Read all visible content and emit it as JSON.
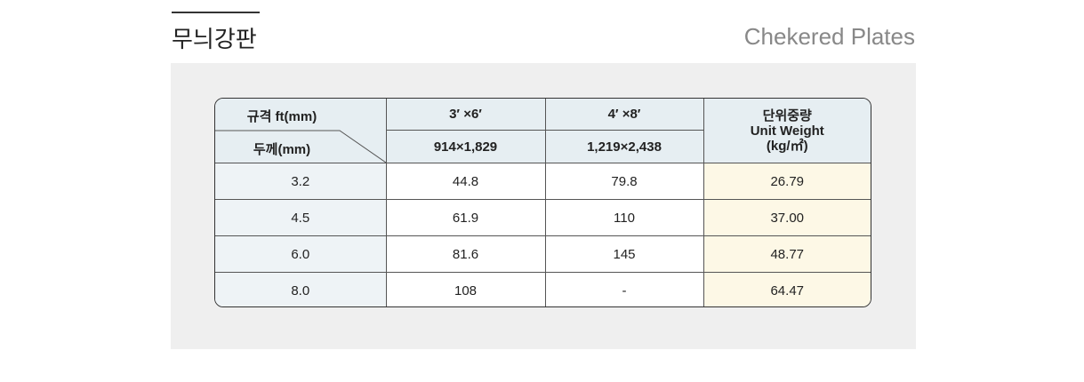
{
  "header": {
    "title": "무늬강판",
    "subtitle": "Chekered Plates"
  },
  "table": {
    "corner": {
      "top": "규격 ft(mm)",
      "bottom": "두께(mm)"
    },
    "columns": [
      {
        "top": "3′ ×6′",
        "bottom": "914×1,829"
      },
      {
        "top": "4′ ×8′",
        "bottom": "1,219×2,438"
      }
    ],
    "unit": [
      "단위중량",
      "Unit Weight",
      "(kg/㎡)"
    ],
    "rows": [
      [
        "3.2",
        "44.8",
        "79.8",
        "26.79"
      ],
      [
        "4.5",
        "61.9",
        "110",
        "37.00"
      ],
      [
        "6.0",
        "81.6",
        "145",
        "48.77"
      ],
      [
        "8.0",
        "108",
        "-",
        "64.47"
      ]
    ]
  }
}
